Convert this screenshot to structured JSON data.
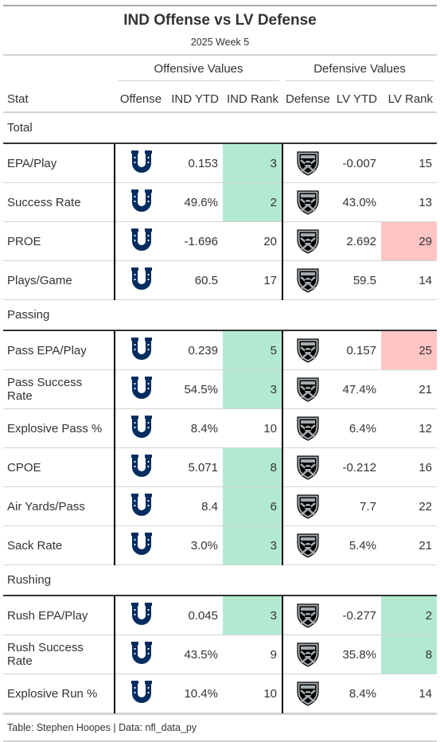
{
  "title": "IND Offense vs LV Defense",
  "subtitle": "2025 Week 5",
  "spanners": {
    "offense": "Offensive Values",
    "defense": "Defensive Values"
  },
  "columns": {
    "stat": "Stat",
    "offense": "Offense",
    "ind_ytd": "IND YTD",
    "ind_rank": "IND Rank",
    "defense": "Defense",
    "lv_ytd": "LV YTD",
    "lv_rank": "LV Rank"
  },
  "colors": {
    "good": "#b2ead1",
    "bad": "#ffc5c5",
    "colts_blue": "#002c5f",
    "raiders_black": "#000000",
    "raiders_silver": "#a5acaf"
  },
  "icons": {
    "offense": "colts-horseshoe-icon",
    "defense": "raiders-shield-icon"
  },
  "groups": [
    {
      "label": "Total",
      "rows": [
        {
          "stat": "EPA/Play",
          "ind_ytd": "0.153",
          "ind_rank": "3",
          "ind_rank_color": "good",
          "lv_ytd": "-0.007",
          "lv_rank": "15",
          "lv_rank_color": ""
        },
        {
          "stat": "Success Rate",
          "ind_ytd": "49.6%",
          "ind_rank": "2",
          "ind_rank_color": "good",
          "lv_ytd": "43.0%",
          "lv_rank": "13",
          "lv_rank_color": ""
        },
        {
          "stat": "PROE",
          "ind_ytd": "-1.696",
          "ind_rank": "20",
          "ind_rank_color": "",
          "lv_ytd": "2.692",
          "lv_rank": "29",
          "lv_rank_color": "bad"
        },
        {
          "stat": "Plays/Game",
          "ind_ytd": "60.5",
          "ind_rank": "17",
          "ind_rank_color": "",
          "lv_ytd": "59.5",
          "lv_rank": "14",
          "lv_rank_color": ""
        }
      ]
    },
    {
      "label": "Passing",
      "rows": [
        {
          "stat": "Pass EPA/Play",
          "ind_ytd": "0.239",
          "ind_rank": "5",
          "ind_rank_color": "good",
          "lv_ytd": "0.157",
          "lv_rank": "25",
          "lv_rank_color": "bad"
        },
        {
          "stat": "Pass Success Rate",
          "ind_ytd": "54.5%",
          "ind_rank": "3",
          "ind_rank_color": "good",
          "lv_ytd": "47.4%",
          "lv_rank": "21",
          "lv_rank_color": ""
        },
        {
          "stat": "Explosive Pass %",
          "ind_ytd": "8.4%",
          "ind_rank": "10",
          "ind_rank_color": "",
          "lv_ytd": "6.4%",
          "lv_rank": "12",
          "lv_rank_color": ""
        },
        {
          "stat": "CPOE",
          "ind_ytd": "5.071",
          "ind_rank": "8",
          "ind_rank_color": "good",
          "lv_ytd": "-0.212",
          "lv_rank": "16",
          "lv_rank_color": ""
        },
        {
          "stat": "Air Yards/Pass",
          "ind_ytd": "8.4",
          "ind_rank": "6",
          "ind_rank_color": "good",
          "lv_ytd": "7.7",
          "lv_rank": "22",
          "lv_rank_color": ""
        },
        {
          "stat": "Sack Rate",
          "ind_ytd": "3.0%",
          "ind_rank": "3",
          "ind_rank_color": "good",
          "lv_ytd": "5.4%",
          "lv_rank": "21",
          "lv_rank_color": ""
        }
      ]
    },
    {
      "label": "Rushing",
      "rows": [
        {
          "stat": "Rush EPA/Play",
          "ind_ytd": "0.045",
          "ind_rank": "3",
          "ind_rank_color": "good",
          "lv_ytd": "-0.277",
          "lv_rank": "2",
          "lv_rank_color": "good"
        },
        {
          "stat": "Rush Success Rate",
          "ind_ytd": "43.5%",
          "ind_rank": "9",
          "ind_rank_color": "",
          "lv_ytd": "35.8%",
          "lv_rank": "8",
          "lv_rank_color": "good"
        },
        {
          "stat": "Explosive Run %",
          "ind_ytd": "10.4%",
          "ind_rank": "10",
          "ind_rank_color": "",
          "lv_ytd": "8.4%",
          "lv_rank": "14",
          "lv_rank_color": ""
        }
      ]
    }
  ],
  "source_note": "Table: Stephen Hoopes | Data: nfl_data_py"
}
